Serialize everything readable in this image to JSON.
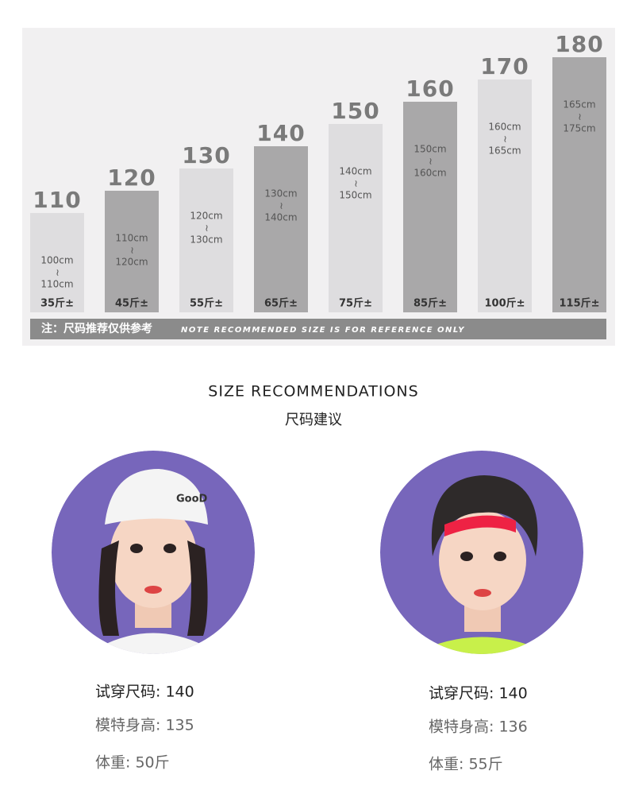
{
  "size_chart": {
    "sizes": [
      {
        "size": 110,
        "range": [
          "100cm",
          "~",
          "110cm"
        ],
        "weight": "35斤±"
      },
      {
        "size": 120,
        "range": [
          "110cm",
          "~",
          "120cm"
        ],
        "weight": "45斤±"
      },
      {
        "size": 130,
        "range": [
          "120cm",
          "~",
          "130cm"
        ],
        "weight": "55斤±"
      },
      {
        "size": 140,
        "range": [
          "130cm",
          "~",
          "140cm"
        ],
        "weight": "65斤±"
      },
      {
        "size": 150,
        "range": [
          "140cm",
          "~",
          "150cm"
        ],
        "weight": "75斤±"
      },
      {
        "size": 160,
        "range": [
          "150cm",
          "~",
          "160cm"
        ],
        "weight": "85斤±"
      },
      {
        "size": 170,
        "range": [
          "160cm",
          "~",
          "165cm"
        ],
        "weight": "100斤±"
      },
      {
        "size": 180,
        "range": [
          "165cm",
          "~",
          "175cm"
        ],
        "weight": "115斤±"
      }
    ],
    "note_cn": "注：尺码推荐仅供参考",
    "note_en": "NOTE RECOMMENDED SIZE IS FOR REFERENCE ONLY"
  },
  "heading": {
    "title": "SIZE RECOMMENDATIONS",
    "subtitle": "尺码建议"
  },
  "models": [
    {
      "lines": [
        "试穿尺码: 140",
        "模特身高: 135",
        "体重: 50斤"
      ]
    },
    {
      "lines": [
        "试穿尺码: 140",
        "模特身高: 136",
        "体重: 55斤"
      ]
    }
  ]
}
